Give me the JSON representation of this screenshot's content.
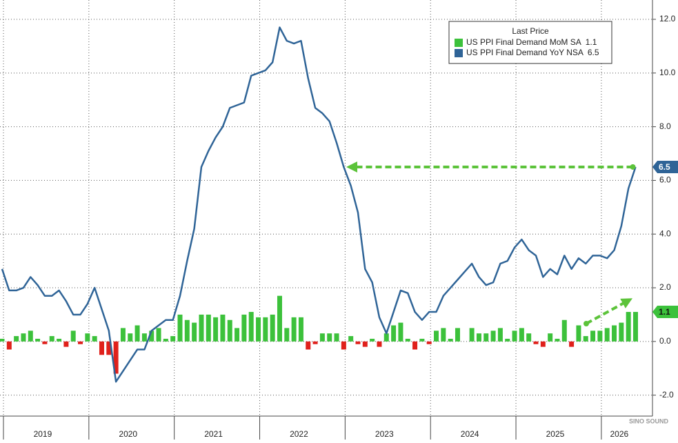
{
  "chart_data": {
    "type": "bar-line",
    "legend_title": "Last Price",
    "watermark": "SINO SOUND",
    "categories": [
      null,
      null,
      null,
      null,
      null,
      null,
      "2019",
      null,
      null,
      null,
      null,
      null,
      null,
      null,
      null,
      null,
      null,
      null,
      "2020",
      null,
      null,
      null,
      null,
      null,
      null,
      null,
      null,
      null,
      null,
      null,
      "2021",
      null,
      null,
      null,
      null,
      null,
      null,
      null,
      null,
      null,
      null,
      null,
      "2022",
      null,
      null,
      null,
      null,
      null,
      null,
      null,
      null,
      null,
      null,
      null,
      "2023",
      null,
      null,
      null,
      null,
      null,
      null,
      null,
      null,
      null,
      null,
      null,
      "2024",
      null,
      null,
      null,
      null,
      null,
      null,
      null,
      null,
      null,
      null,
      null,
      "2025",
      null,
      null,
      null,
      null,
      null,
      null,
      null,
      null,
      "2026",
      null,
      null
    ],
    "series": [
      {
        "name": "US PPI Final Demand MoM SA",
        "type": "bar",
        "color": "#3cc13b",
        "negative_color": "#e0201b",
        "values": [
          0.1,
          -0.3,
          0.2,
          0.3,
          0.4,
          0.1,
          -0.1,
          0.2,
          0.1,
          -0.2,
          0.4,
          -0.1,
          0.3,
          0.2,
          -0.5,
          -0.5,
          -1.2,
          0.5,
          0.3,
          0.6,
          0.3,
          0.4,
          0.5,
          0.1,
          0.2,
          1.0,
          0.8,
          0.7,
          1.0,
          1.0,
          0.9,
          1.0,
          0.8,
          0.5,
          1.0,
          1.1,
          0.9,
          0.9,
          1.0,
          1.7,
          0.5,
          0.9,
          0.9,
          -0.3,
          -0.1,
          0.3,
          0.3,
          0.3,
          -0.3,
          0.2,
          -0.1,
          -0.2,
          0.1,
          -0.2,
          0.3,
          0.6,
          0.7,
          0.1,
          -0.3,
          0.1,
          -0.1,
          0.4,
          0.5,
          0.1,
          0.5,
          0.0,
          0.5,
          0.3,
          0.3,
          0.4,
          0.5,
          0.1,
          0.4,
          0.5,
          0.3,
          -0.1,
          -0.2,
          0.3,
          0.1,
          0.8,
          -0.2,
          0.6,
          0.2,
          0.4,
          0.4,
          0.5,
          0.6,
          0.7,
          1.1,
          1.1
        ]
      },
      {
        "name": "US PPI Final Demand YoY NSA",
        "type": "line",
        "color": "#2f6497",
        "values": [
          2.7,
          1.9,
          1.9,
          2.0,
          2.4,
          2.1,
          1.7,
          1.7,
          1.9,
          1.5,
          1.0,
          1.0,
          1.4,
          2.0,
          1.2,
          0.4,
          -1.5,
          -1.1,
          -0.7,
          -0.3,
          -0.3,
          0.4,
          0.6,
          0.8,
          0.8,
          1.7,
          3.0,
          4.2,
          6.5,
          7.1,
          7.6,
          8.0,
          8.7,
          8.8,
          8.9,
          9.9,
          10.0,
          10.1,
          10.4,
          11.7,
          11.2,
          11.1,
          11.2,
          9.8,
          8.7,
          8.5,
          8.2,
          7.4,
          6.5,
          5.8,
          4.8,
          2.7,
          2.2,
          0.9,
          0.3,
          1.1,
          1.9,
          1.8,
          1.1,
          0.8,
          1.1,
          1.1,
          1.7,
          2.0,
          2.3,
          2.6,
          2.9,
          2.4,
          2.1,
          2.2,
          2.9,
          3.0,
          3.5,
          3.8,
          3.4,
          3.2,
          2.4,
          2.7,
          2.5,
          3.2,
          2.7,
          3.1,
          2.9,
          3.2,
          3.2,
          3.1,
          3.4,
          4.3,
          5.7,
          6.5
        ]
      }
    ],
    "ylim": [
      -2.78,
      12.72
    ],
    "yticks": [
      {
        "value": -2,
        "label": "-2.0"
      },
      {
        "value": 0,
        "label": "0.0"
      },
      {
        "value": 2,
        "label": "2.0"
      },
      {
        "value": 4,
        "label": "4.0"
      },
      {
        "value": 6,
        "label": "6.0"
      },
      {
        "value": 8,
        "label": "8.0"
      },
      {
        "value": 10,
        "label": "10.0"
      },
      {
        "value": 12,
        "label": "12.0"
      }
    ],
    "grid": true,
    "legend_position": "upper right",
    "annotation_color": "#5cc33a"
  }
}
